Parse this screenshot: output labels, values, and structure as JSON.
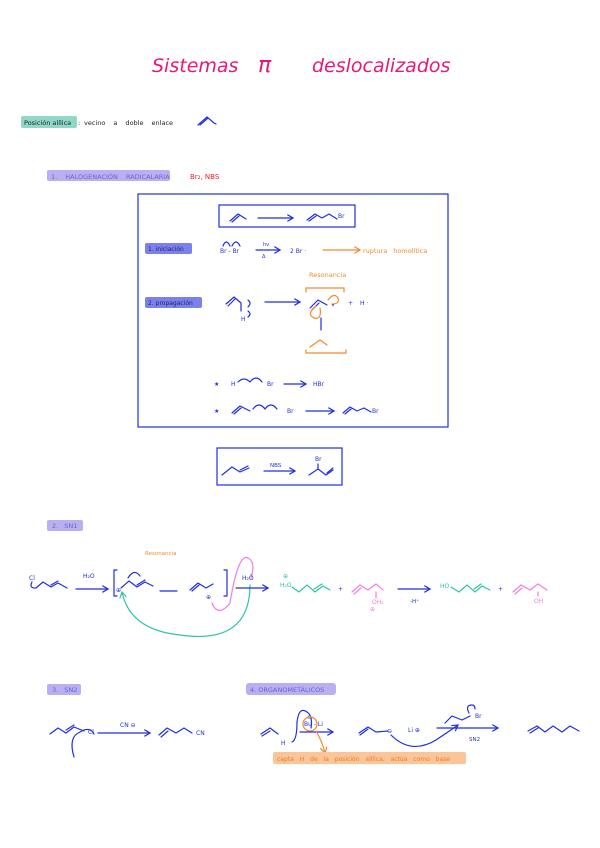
{
  "title": {
    "main": "Sistemas",
    "pi": "π",
    "rest": "deslocalizados"
  },
  "definition": {
    "term": "Posición alílica",
    "colon": ":",
    "text": "vecino a doble enlace"
  },
  "section1": {
    "label": "1. HALOGENACIÓN RADICALARIA",
    "reagents": "Br₂, NBS",
    "box_product_atom": "Br",
    "initiation": {
      "label": "1. iniciación",
      "reactant": "Br - Br",
      "cond_top": "hν",
      "cond_bottom": "Δ",
      "product": "2 Br ·",
      "note": "ruptura homolítica"
    },
    "propagation": {
      "label": "2. propagación",
      "h_label": "H",
      "resonance": "Resonancia",
      "plus": "+",
      "byproduct": "H ·"
    },
    "step_a": {
      "star": "★",
      "reactant": "H",
      "br": "Br",
      "product": "HBr"
    },
    "step_b": {
      "star": "★",
      "br": "Br",
      "product_atom": "Br"
    },
    "nbs_box": {
      "reagent": "NBS",
      "product_atom": "Br"
    }
  },
  "section2": {
    "label": "2. SN1",
    "leaving": "Cl",
    "reagent": "H₂O",
    "resonance": "Resonancia",
    "charge": "⊕",
    "nucleophile": "H₂Ö",
    "prod1_group": "H₂O",
    "prod1_charge": "⊕",
    "plus": "+",
    "prod2_group": "OH₂",
    "prod2_charge": "⊕",
    "deprot": "-H⁺",
    "final1_group": "HO",
    "final2_group": "OH"
  },
  "section3": {
    "label": "3. SN2",
    "leaving": "Cl",
    "reagent": "CN ⊖",
    "product_group": "CN"
  },
  "section4": {
    "label": "4. ORGANOMETÁLICOS",
    "h_label": "H",
    "base": "Bu - Li",
    "base_charge": "⊖",
    "anion_charge": "⊖",
    "counterion": "Li ⊕",
    "alkyl_halide": "Br",
    "mechanism": "SN2",
    "note": "capta H de la posición alílica, actúa como base"
  },
  "colors": {
    "title": "#e8177a",
    "structures": "#1f2fe0",
    "notes": "#f28a2e",
    "teal": "#2ec4a6",
    "pink": "#f07ee0",
    "section_label": "#b9b0f2",
    "definition_label": "#8fd8c8"
  }
}
